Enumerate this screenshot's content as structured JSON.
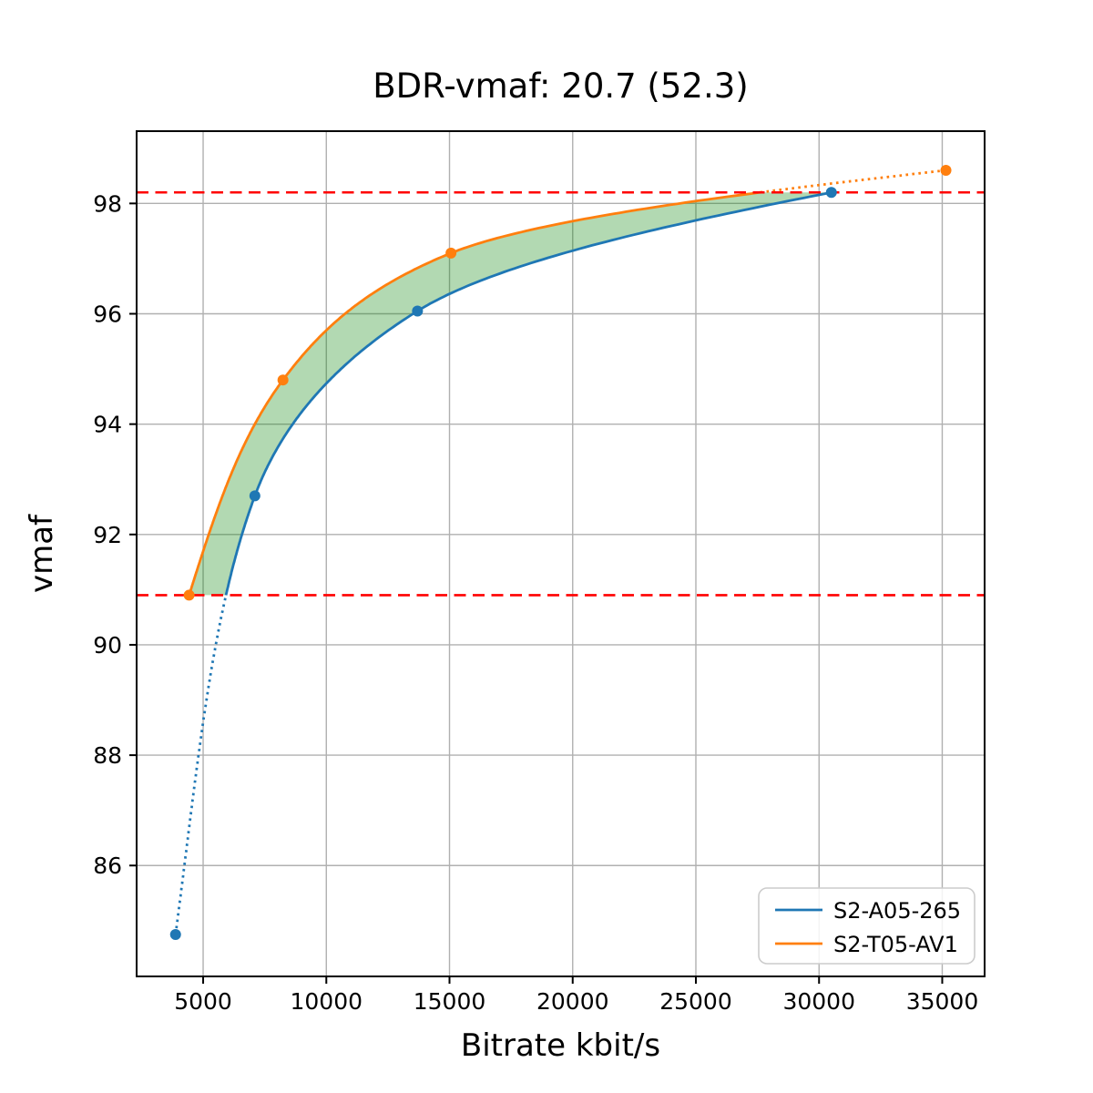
{
  "title": "BDR-vmaf: 20.7 (52.3)",
  "chart_data": {
    "type": "line",
    "title": "BDR-vmaf: 20.7 (52.3)",
    "xlabel": "Bitrate kbit/s",
    "ylabel": "vmaf",
    "xlim": [
      2300,
      36720
    ],
    "ylim": [
      83.99,
      99.31
    ],
    "x_ticks": [
      5000,
      10000,
      15000,
      20000,
      25000,
      30000,
      35000
    ],
    "y_ticks": [
      86,
      88,
      90,
      92,
      94,
      96,
      98
    ],
    "grid": true,
    "grid_color": "#b0b0b0",
    "legend_position": "lower right",
    "series": [
      {
        "name": "S2-A05-265",
        "color": "#1f77b4",
        "points": [
          [
            3880,
            84.75
          ],
          [
            7100,
            92.7
          ],
          [
            13700,
            96.05
          ],
          [
            30500,
            98.2
          ]
        ]
      },
      {
        "name": "S2-T05-AV1",
        "color": "#ff7f0e",
        "points": [
          [
            4430,
            90.9
          ],
          [
            8240,
            94.8
          ],
          [
            15060,
            97.1
          ],
          [
            35150,
            98.6
          ]
        ]
      }
    ],
    "reference_lines": {
      "color": "#ff0000",
      "style": "dashed",
      "quality_low": 90.9,
      "quality_high": 98.2
    },
    "fill_between_color": "rgba(0,128,0,0.3)",
    "line_style_outside_range": "dotted"
  }
}
